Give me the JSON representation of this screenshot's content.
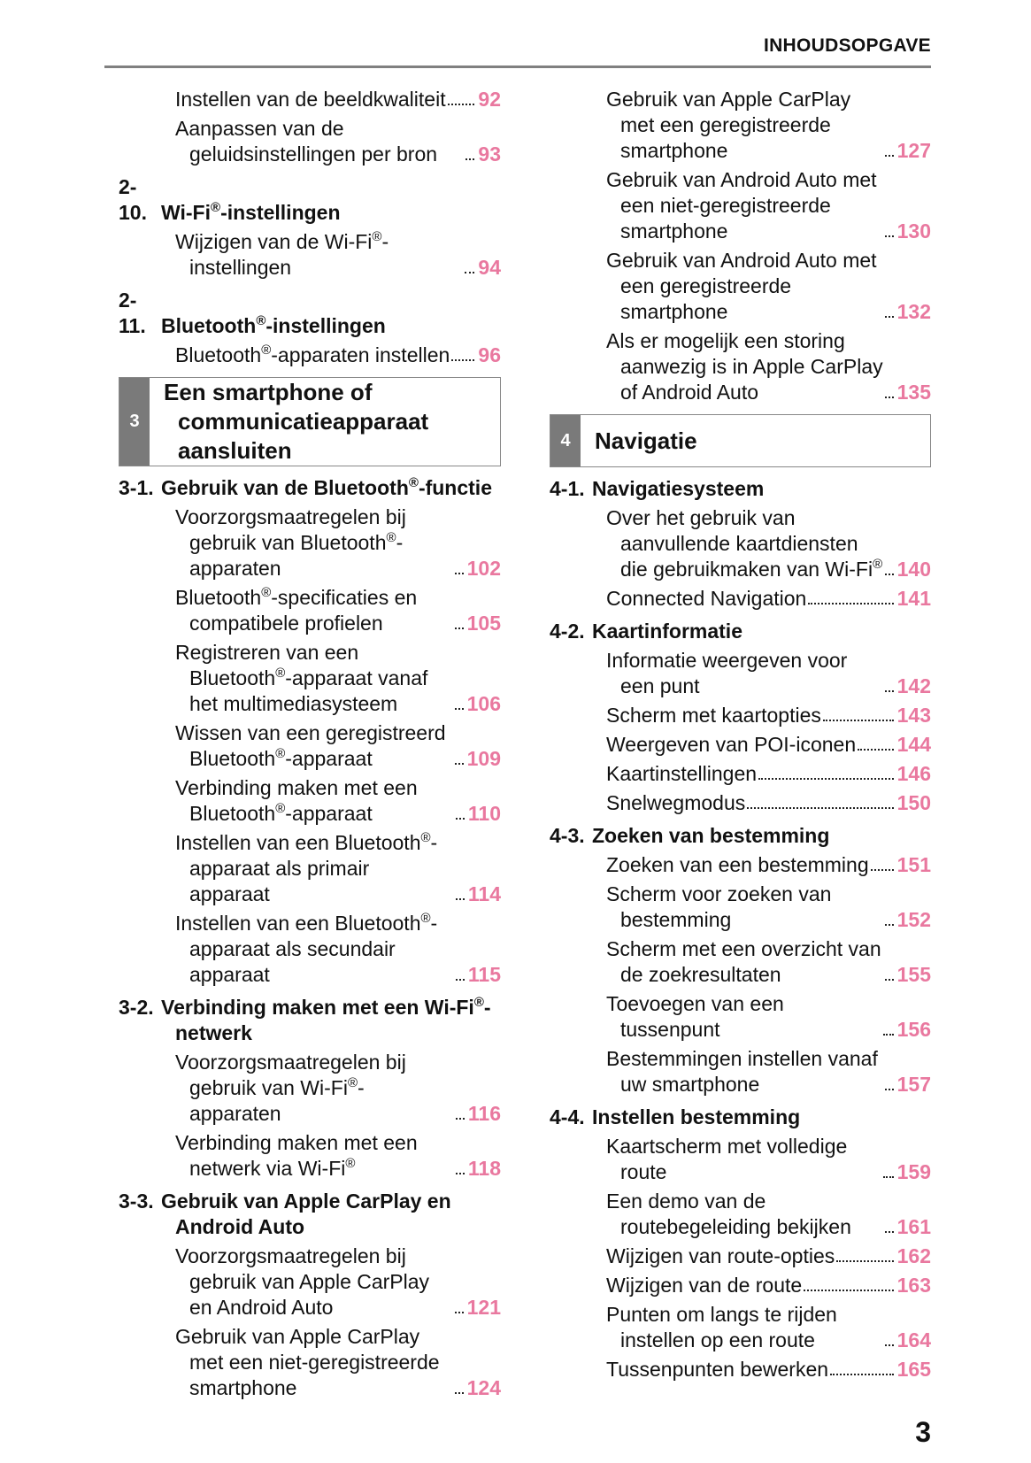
{
  "header": {
    "title": "INHOUDSOPGAVE"
  },
  "page_number": "3",
  "columns": [
    [
      {
        "text": "Instellen van de beeldkwaliteit",
        "page": 92
      },
      {
        "text": "Aanpassen van de geluidsinstellingen per bron",
        "page": 93
      },
      {
        "number": "2-10.",
        "title": "Wi-Fi®-instellingen"
      },
      {
        "text": "Wijzigen van de Wi-Fi®-instellingen",
        "page": 94
      },
      {
        "number": "2-11.",
        "title": "Bluetooth®-instellingen"
      },
      {
        "text": "Bluetooth®-apparaten instellen",
        "page": 96
      },
      {
        "section_number": "3",
        "section_title": "Een smartphone of communicatieapparaat aansluiten"
      },
      {
        "number": "3-1.",
        "title": "Gebruik van de Bluetooth®-functie"
      },
      {
        "text": "Voorzorgsmaatregelen bij gebruik van Bluetooth®-apparaten",
        "page": 102
      },
      {
        "text": "Bluetooth®-specificaties en compatibele profielen",
        "page": 105
      },
      {
        "text": "Registreren van een Bluetooth®-apparaat vanaf het multimediasysteem",
        "page": 106
      },
      {
        "text": "Wissen van een geregistreerd Bluetooth®-apparaat",
        "page": 109
      },
      {
        "text": "Verbinding maken met een Bluetooth®-apparaat",
        "page": 110
      },
      {
        "text": "Instellen van een Bluetooth®-apparaat als primair apparaat",
        "page": 114
      },
      {
        "text": "Instellen van een Bluetooth®-apparaat als secundair apparaat",
        "page": 115
      },
      {
        "number": "3-2.",
        "title": "Verbinding maken met een Wi-Fi®-netwerk"
      },
      {
        "text": "Voorzorgsmaatregelen bij gebruik van Wi-Fi®-apparaten",
        "page": 116
      },
      {
        "text": "Verbinding maken met een netwerk via Wi-Fi®",
        "page": 118
      },
      {
        "number": "3-3.",
        "title": "Gebruik van Apple CarPlay en Android Auto"
      },
      {
        "text": "Voorzorgsmaatregelen bij gebruik van Apple CarPlay en Android Auto",
        "page": 121
      },
      {
        "text": "Gebruik van Apple CarPlay met een niet-geregistreerde smartphone",
        "page": 124
      }
    ],
    [
      {
        "text": "Gebruik van Apple CarPlay met een geregistreerde smartphone",
        "page": 127
      },
      {
        "text": "Gebruik van Android Auto met een niet-geregistreerde smartphone",
        "page": 130
      },
      {
        "text": "Gebruik van Android Auto met een geregistreerde smartphone",
        "page": 132
      },
      {
        "text": "Als er mogelijk een storing aanwezig is in Apple CarPlay of Android Auto",
        "page": 135
      },
      {
        "section_number": "4",
        "section_title": "Navigatie"
      },
      {
        "number": "4-1.",
        "title": "Navigatiesysteem"
      },
      {
        "text": "Over het gebruik van aanvullende kaartdiensten die gebruikmaken van Wi-Fi®",
        "page": 140
      },
      {
        "text": "Connected Navigation",
        "page": 141
      },
      {
        "number": "4-2.",
        "title": "Kaartinformatie"
      },
      {
        "text": "Informatie weergeven voor een punt",
        "page": 142
      },
      {
        "text": "Scherm met kaartopties",
        "page": 143
      },
      {
        "text": "Weergeven van POI-iconen",
        "page": 144
      },
      {
        "text": "Kaartinstellingen",
        "page": 146
      },
      {
        "text": "Snelwegmodus",
        "page": 150
      },
      {
        "number": "4-3.",
        "title": "Zoeken van bestemming"
      },
      {
        "text": "Zoeken van een bestemming",
        "page": 151
      },
      {
        "text": "Scherm voor zoeken van bestemming",
        "page": 152
      },
      {
        "text": "Scherm met een overzicht van de zoekresultaten",
        "page": 155
      },
      {
        "text": "Toevoegen van een tussenpunt",
        "page": 156
      },
      {
        "text": "Bestemmingen instellen vanaf uw smartphone",
        "page": 157
      },
      {
        "number": "4-4.",
        "title": "Instellen bestemming"
      },
      {
        "text": "Kaartscherm met volledige route",
        "page": 159
      },
      {
        "text": "Een demo van de routebegeleiding bekijken",
        "page": 161
      },
      {
        "text": "Wijzigen van route-opties",
        "page": 162
      },
      {
        "text": "Wijzigen van de route",
        "page": 163
      },
      {
        "text": "Punten om langs te rijden instellen op een route",
        "page": 164
      },
      {
        "text": "Tussenpunten bewerken",
        "page": 165
      }
    ]
  ]
}
